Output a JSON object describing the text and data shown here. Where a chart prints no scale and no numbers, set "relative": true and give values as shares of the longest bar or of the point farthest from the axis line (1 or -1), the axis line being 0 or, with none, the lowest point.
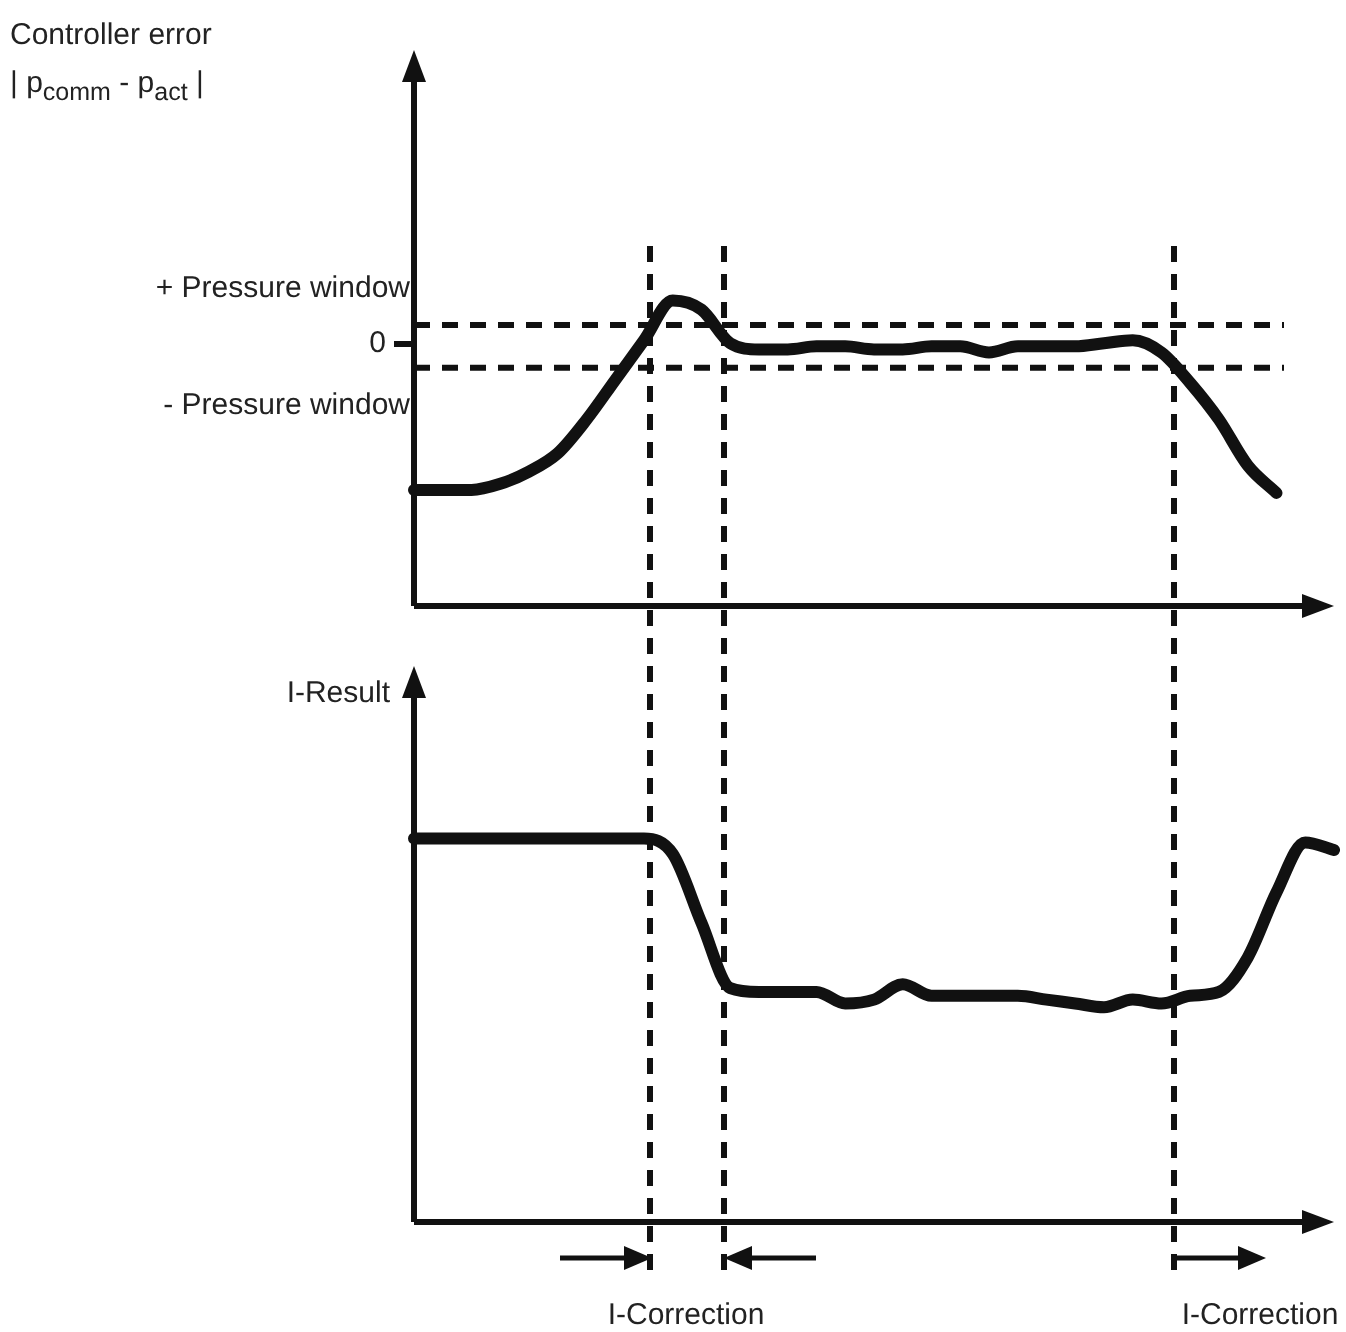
{
  "chart_data": [
    {
      "type": "line",
      "ylabel": "Controller error\n| p$_{comm}$ - p$_{act}$ |",
      "relative": true,
      "marker": "none",
      "line_style": "solid",
      "categories": [
        null,
        null,
        null,
        null,
        null,
        null,
        null,
        null,
        null,
        null,
        null,
        null,
        null,
        null,
        null,
        null,
        null,
        null,
        null,
        null,
        null,
        null,
        null,
        null,
        null,
        null,
        null,
        null,
        null,
        null,
        null,
        null,
        null
      ],
      "series": [
        {
          "color": "#111111",
          "values": [
            0.38,
            0.38,
            0.38,
            0.4,
            0.44,
            0.5,
            0.61,
            0.74,
            0.87,
            1.0,
            0.97,
            0.86,
            0.84,
            0.84,
            0.85,
            0.85,
            0.84,
            0.84,
            0.85,
            0.85,
            0.83,
            0.85,
            0.85,
            0.85,
            0.86,
            0.87,
            0.83,
            0.73,
            0.61,
            0.46,
            0.37,
            null,
            null
          ]
        }
      ],
      "ref_lines": [
        {
          "axis": "y",
          "value": 0.92,
          "label": "+ Pressure window",
          "line_style": "dashed",
          "color": "#111111"
        },
        {
          "axis": "y",
          "value": 0.78,
          "label": "- Pressure window",
          "line_style": "dashed",
          "color": "#111111"
        }
      ],
      "annotations": [
        "0"
      ]
    },
    {
      "type": "line",
      "ylabel": "I-Result",
      "relative": true,
      "marker": "none",
      "line_style": "solid",
      "categories": [
        null,
        null,
        null,
        null,
        null,
        null,
        null,
        null,
        null,
        null,
        null,
        null,
        null,
        null,
        null,
        null,
        null,
        null,
        null,
        null,
        null,
        null,
        null,
        null,
        null,
        null,
        null,
        null,
        null,
        null,
        null,
        null,
        null
      ],
      "series": [
        {
          "color": "#111111",
          "values": [
            1,
            1,
            1,
            1,
            1,
            1,
            1,
            1,
            1,
            0.96,
            0.78,
            0.61,
            0.6,
            0.6,
            0.6,
            0.57,
            0.58,
            0.62,
            0.59,
            0.59,
            0.59,
            0.59,
            0.58,
            0.57,
            0.56,
            0.58,
            0.57,
            0.59,
            0.6,
            0.69,
            0.86,
            0.99,
            0.97
          ]
        }
      ],
      "annotations": [
        "I-Correction",
        "I-Correction"
      ]
    }
  ]
}
